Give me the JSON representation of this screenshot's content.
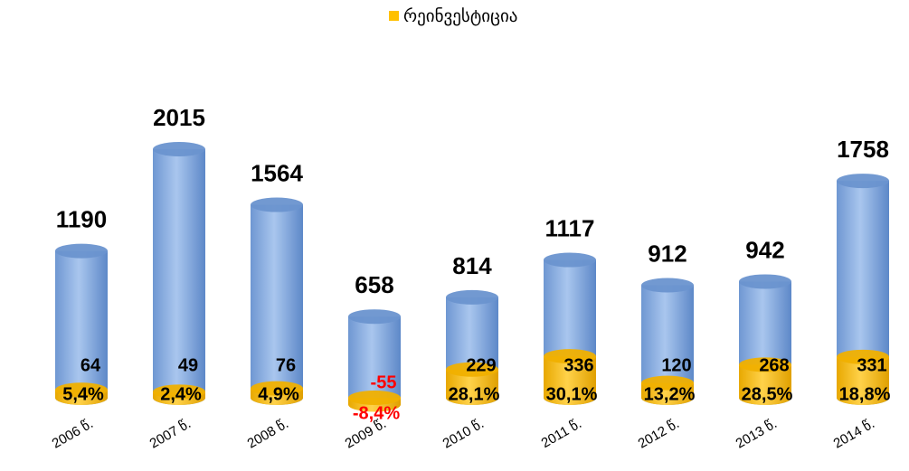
{
  "chart_data": {
    "type": "cylinder",
    "categories": [
      "2006 წ.",
      "2007 წ.",
      "2008 წ.",
      "2009 წ.",
      "2010 წ.",
      "2011 წ.",
      "2012 წ.",
      "2013 წ.",
      "2014 წ."
    ],
    "series": [
      {
        "color": "#7fa6dc",
        "values": [
          1190,
          2015,
          1564,
          658,
          814,
          1117,
          912,
          942,
          1758
        ]
      },
      {
        "name": "რეინვესტიცია",
        "color": "#ffc000",
        "values": [
          64,
          49,
          76,
          -55,
          229,
          336,
          120,
          268,
          331
        ]
      }
    ],
    "share": {
      "values": [
        5.4,
        2.4,
        4.9,
        -8.4,
        28.1,
        30.1,
        13.2,
        28.5,
        18.8
      ],
      "value_labels": [
        "5,4%",
        "2,4%",
        "4,9%",
        "-8,4%",
        "28,1%",
        "30,1%",
        "13,2%",
        "28,5%",
        "18,8%"
      ]
    },
    "negative_color": "#ff0000",
    "legend": "top"
  }
}
